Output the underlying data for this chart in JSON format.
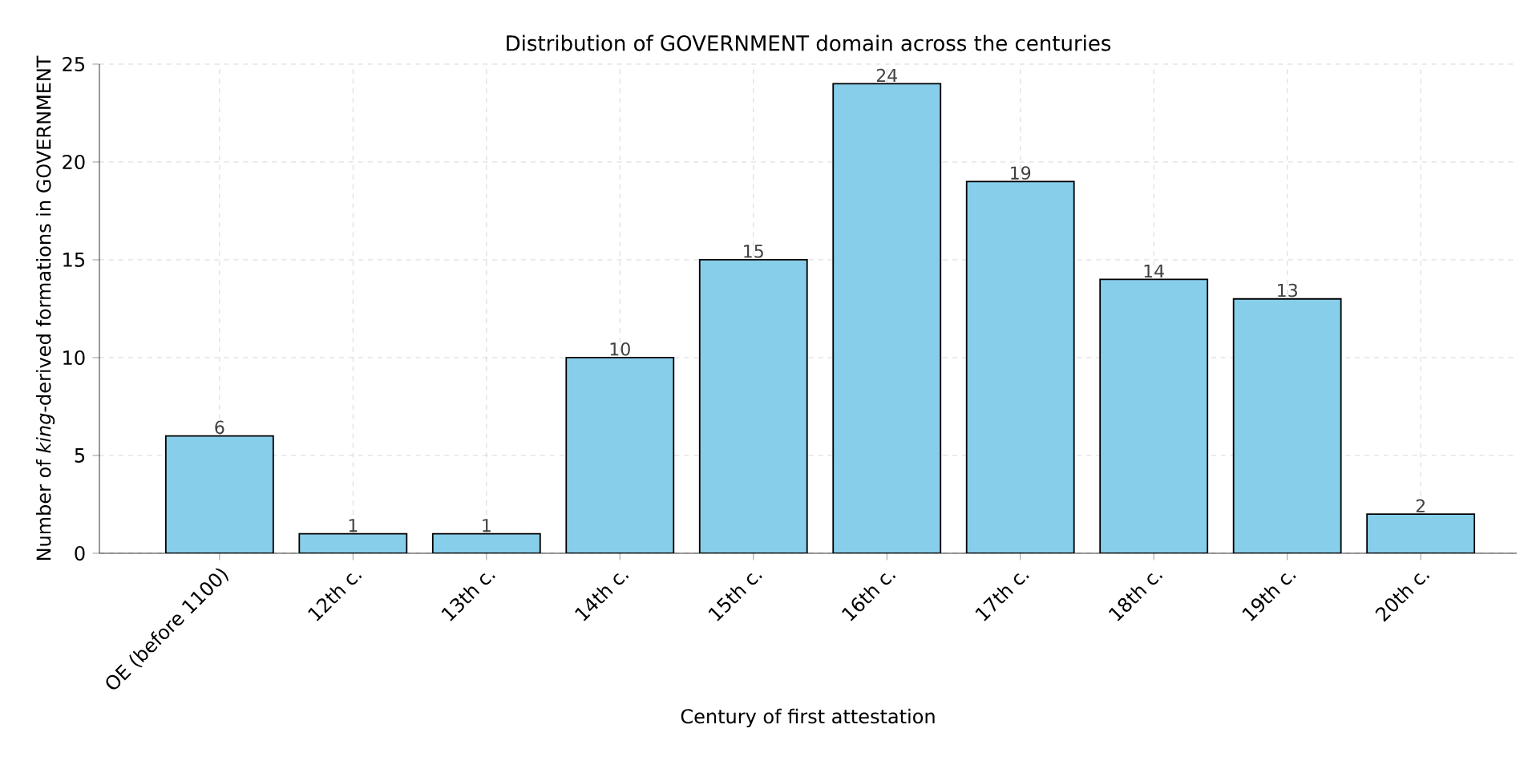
{
  "chart_data": {
    "type": "bar",
    "title": "Distribution of GOVERNMENT domain across the centuries",
    "xlabel": "Century of first attestation",
    "ylabel": "Number of *king*-derived formations in GOVERNMENT",
    "categories": [
      "OE (before 1100)",
      "12th c.",
      "13th c.",
      "14th c.",
      "15th c.",
      "16th c.",
      "17th c.",
      "18th c.",
      "19th c.",
      "20th c."
    ],
    "values": [
      6,
      1,
      1,
      10,
      15,
      24,
      19,
      14,
      13,
      2
    ],
    "color": "#87ceeb",
    "ylim": [
      0,
      25
    ],
    "yticks": [
      0,
      5,
      10,
      15,
      20,
      25
    ],
    "grid": true,
    "data_labels": true
  }
}
